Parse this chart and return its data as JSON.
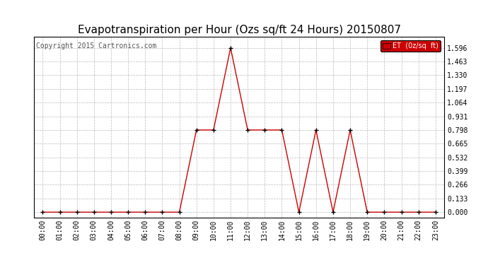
{
  "title": "Evapotranspiration per Hour (Ozs sq/ft 24 Hours) 20150807",
  "copyright": "Copyright 2015 Cartronics.com",
  "legend_label": "ET  (0z/sq  ft)",
  "hours": [
    "00:00",
    "01:00",
    "02:00",
    "03:00",
    "04:00",
    "05:00",
    "06:00",
    "07:00",
    "08:00",
    "09:00",
    "10:00",
    "11:00",
    "12:00",
    "13:00",
    "14:00",
    "15:00",
    "16:00",
    "17:00",
    "18:00",
    "19:00",
    "20:00",
    "21:00",
    "22:00",
    "23:00"
  ],
  "values": [
    0.0,
    0.0,
    0.0,
    0.0,
    0.0,
    0.0,
    0.0,
    0.0,
    0.0,
    0.798,
    0.798,
    1.596,
    0.798,
    0.798,
    0.798,
    0.0,
    0.798,
    0.0,
    0.798,
    0.0,
    0.0,
    0.0,
    0.0,
    0.0
  ],
  "line_color": "#cc0000",
  "marker_color": "#000000",
  "bg_color": "#ffffff",
  "grid_color": "#bbbbbb",
  "title_color": "#000000",
  "legend_bg": "#cc0000",
  "legend_text_color": "#ffffff",
  "yticks": [
    0.0,
    0.133,
    0.266,
    0.399,
    0.532,
    0.665,
    0.798,
    0.931,
    1.064,
    1.197,
    1.33,
    1.463,
    1.596
  ],
  "ylim": [
    -0.05,
    1.7
  ],
  "title_fontsize": 11,
  "axis_fontsize": 7,
  "copyright_fontsize": 7
}
